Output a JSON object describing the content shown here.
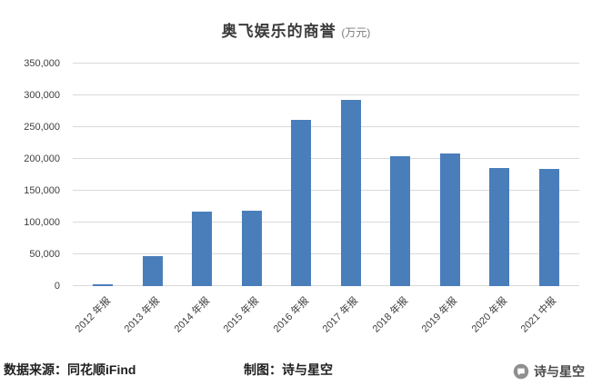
{
  "title": {
    "main": "奥飞娱乐的商誉",
    "unit": "(万元)"
  },
  "chart_data": {
    "type": "bar",
    "title": "奥飞娱乐的商誉 (万元)",
    "categories": [
      "2012 年报",
      "2013 年报",
      "2014 年报",
      "2015 年报",
      "2016 年报",
      "2017 年报",
      "2018 年报",
      "2019 年报",
      "2020 年报",
      "2021 中报"
    ],
    "values": [
      3000,
      47000,
      117000,
      118000,
      261000,
      293000,
      205000,
      208000,
      186000,
      184000
    ],
    "xlabel": "",
    "ylabel": "",
    "ylim": [
      0,
      350000
    ],
    "ytick_step": 50000,
    "grid": "horizontal",
    "legend": "none",
    "bar_color": "#4a7ebb",
    "gridline_color": "#d9d9d9"
  },
  "footer": {
    "source": "数据来源：同花顺iFind",
    "credit": "制图：诗与星空",
    "brand": "诗与星空"
  }
}
